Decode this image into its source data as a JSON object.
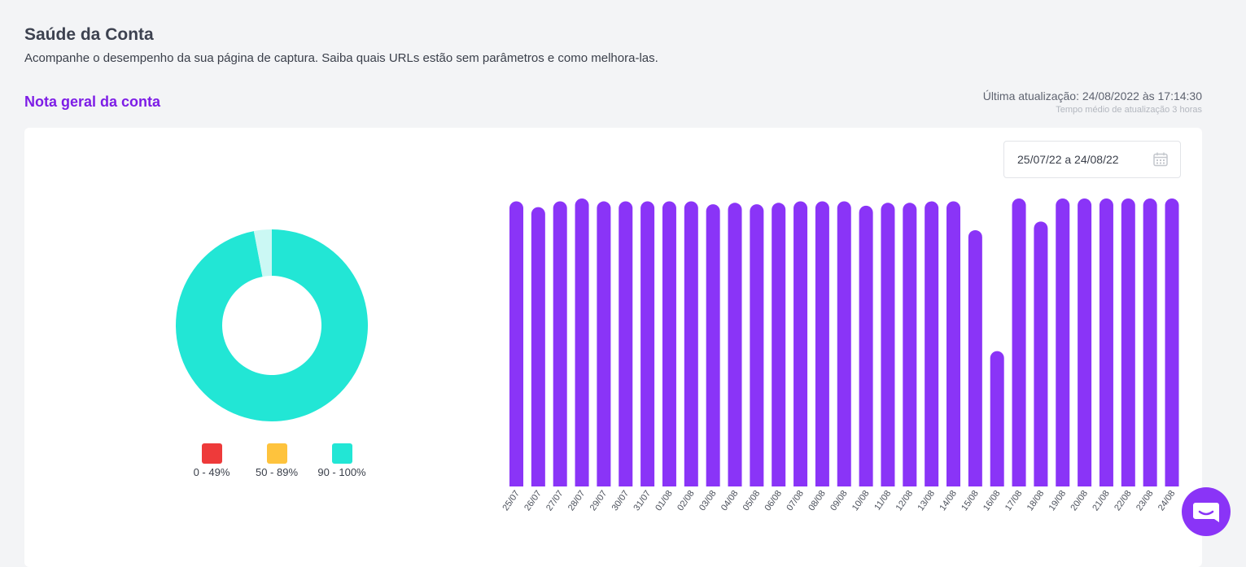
{
  "header": {
    "title": "Saúde da Conta",
    "subtitle": "Acompanhe o desempenho da sua página de captura. Saiba quais URLs estão sem parâmetros e como melhora-las."
  },
  "section": {
    "title": "Nota geral da conta",
    "last_update": "Última atualização: 24/08/2022 às 17:14:30",
    "avg_update": "Tempo médio de atualização 3 horas"
  },
  "date_filter": {
    "value": "25/07/22 a 24/08/22",
    "icon": "calendar-icon"
  },
  "colors": {
    "accent": "#7d1de6",
    "bar": "#8a34f7",
    "red": "#ee3a3a",
    "yellow": "#fec33d",
    "teal": "#22e6d5",
    "teal_light": "#cbf8f4"
  },
  "legend": [
    {
      "label": "0 - 49%",
      "color": "#ee3a3a"
    },
    {
      "label": "50 - 89%",
      "color": "#fec33d"
    },
    {
      "label": "90 - 100%",
      "color": "#22e6d5"
    }
  ],
  "chart_data": [
    {
      "type": "pie",
      "categories": [
        "0 - 49%",
        "50 - 89%",
        "90 - 100%"
      ],
      "values": [
        0,
        3,
        97
      ],
      "colors": [
        "#ee3a3a",
        "#cbf8f4",
        "#22e6d5"
      ],
      "title": "",
      "legend": "bottom"
    },
    {
      "type": "bar",
      "categories": [
        "25/07",
        "26/07",
        "27/07",
        "28/07",
        "29/07",
        "30/07",
        "31/07",
        "01/08",
        "02/08",
        "03/08",
        "04/08",
        "05/08",
        "06/08",
        "07/08",
        "08/08",
        "09/08",
        "10/08",
        "11/08",
        "12/08",
        "13/08",
        "14/08",
        "15/08",
        "16/08",
        "17/08",
        "18/08",
        "19/08",
        "20/08",
        "21/08",
        "22/08",
        "23/08",
        "24/08"
      ],
      "values": [
        99,
        97,
        99,
        100,
        99,
        99,
        99,
        99,
        99,
        98,
        98.5,
        98,
        98.5,
        99,
        99,
        99,
        97.5,
        98.5,
        98.5,
        99,
        99,
        89,
        47,
        100,
        92,
        100,
        100,
        100,
        100,
        100,
        100
      ],
      "ylim": [
        0,
        100
      ],
      "grid": false,
      "title": "",
      "xlabel": "",
      "ylabel": ""
    }
  ],
  "chat": {
    "icon": "chat-icon"
  }
}
